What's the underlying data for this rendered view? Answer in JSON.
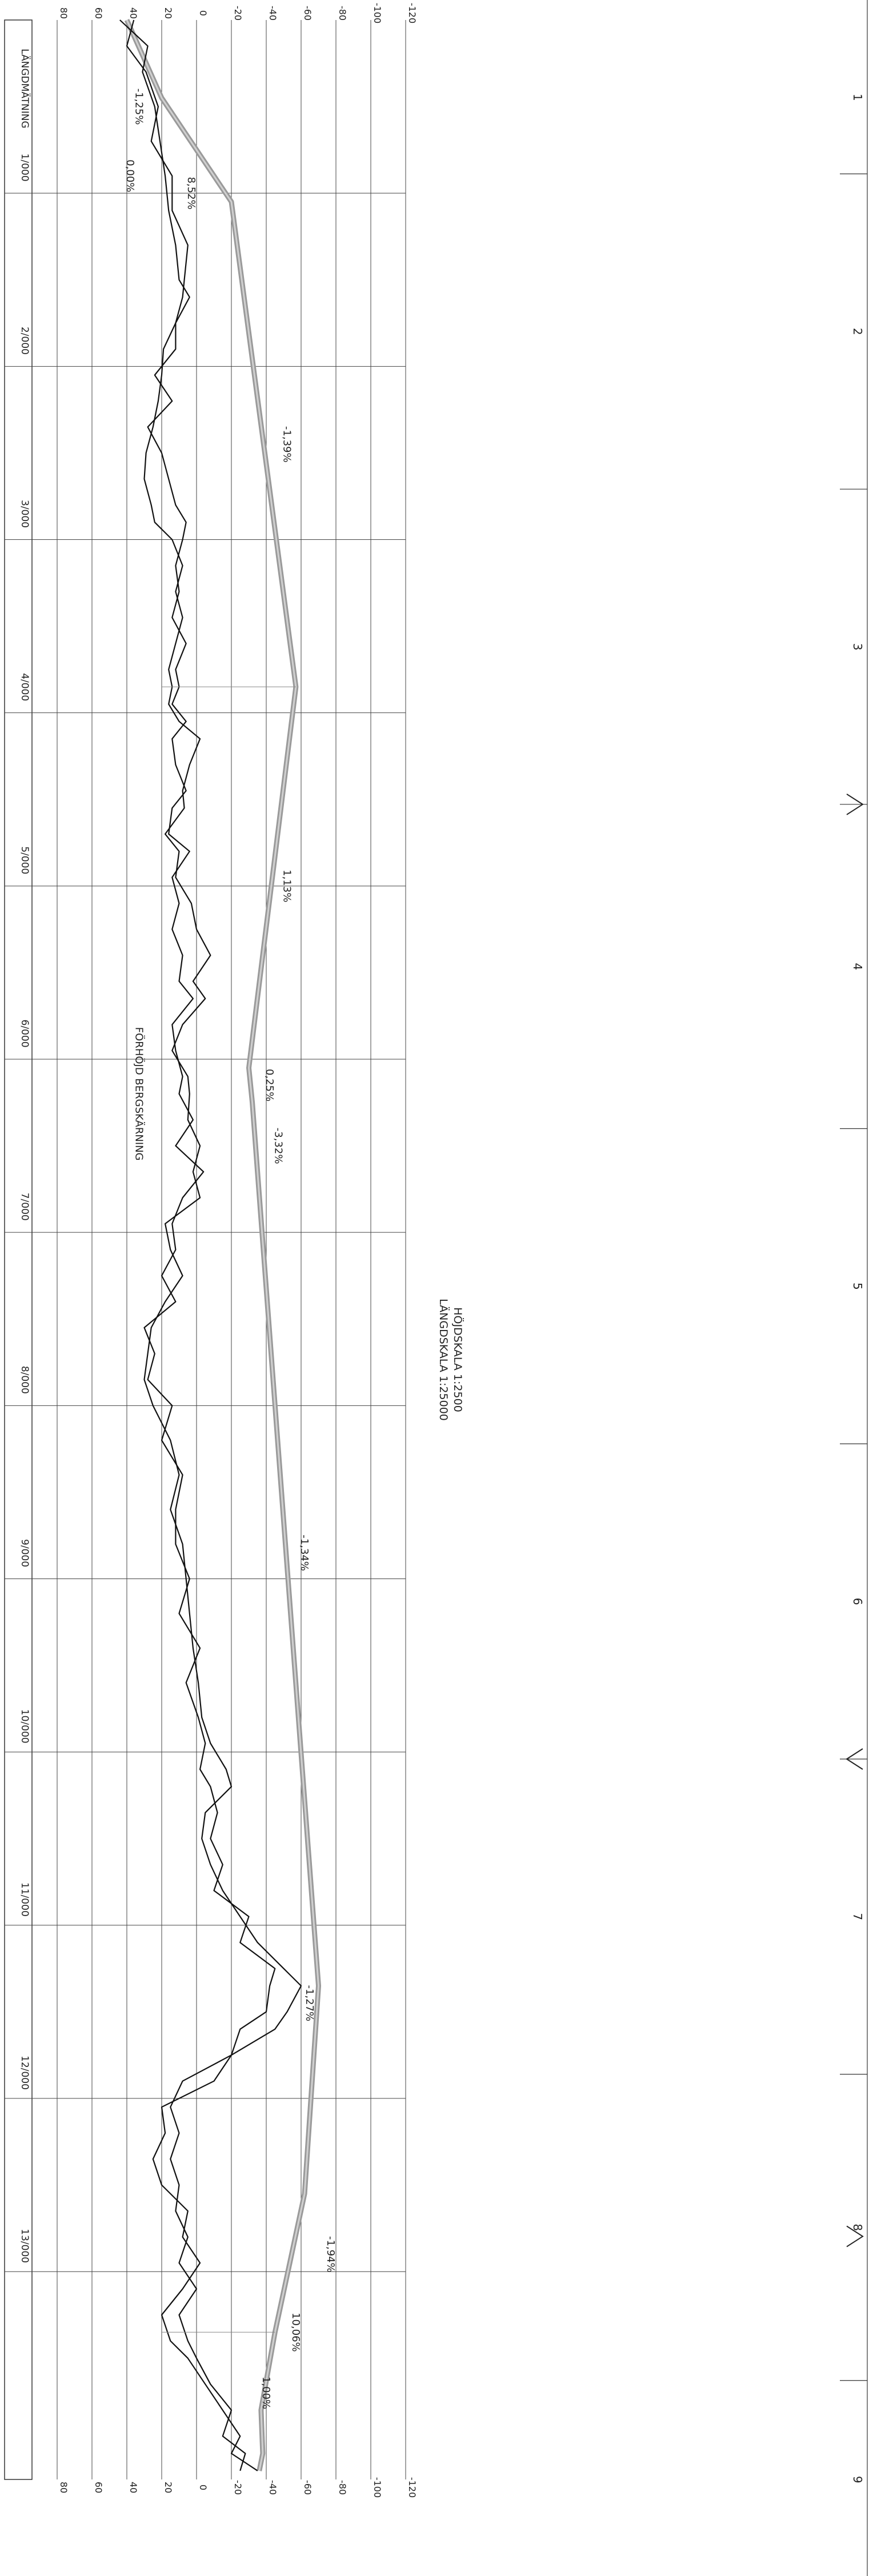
{
  "scale": {
    "vertical": "HÖJDSKALA 1:2500",
    "horizontal": "LÄNGDSKALA 1:25000"
  },
  "header_label": "LÄNGDMÄTNING",
  "chart_data": {
    "type": "line",
    "title": "",
    "xlabel": "LÄNGDMÄTNING",
    "ylabel": "",
    "x_unit": "m",
    "y_unit": "m",
    "xlim": [
      0,
      14200
    ],
    "ylim": [
      -120,
      80
    ],
    "y_ticks": [
      -120,
      -100,
      -80,
      -60,
      -40,
      -20,
      0,
      20,
      40,
      60,
      80
    ],
    "x_ticks": [
      "1/000",
      "2/000",
      "3/000",
      "4/000",
      "5/000",
      "6/000",
      "7/000",
      "8/000",
      "9/000",
      "10/000",
      "11/000",
      "12/000",
      "13/000"
    ],
    "x_tick_values": [
      1000,
      2000,
      3000,
      4000,
      5000,
      6000,
      7000,
      8000,
      9000,
      10000,
      11000,
      12000,
      13000
    ],
    "section_numbers": [
      "1",
      "2",
      "3",
      "4",
      "5",
      "6",
      "7",
      "8",
      "9"
    ],
    "section_boundaries": [
      0,
      850,
      2600,
      4350,
      6150,
      7900,
      9650,
      11400,
      13100,
      14200
    ],
    "chevrons": [
      {
        "x": 4350,
        "direction": "up"
      },
      {
        "x": 9650,
        "direction": "down"
      },
      {
        "x": 12300,
        "direction": "up"
      }
    ],
    "series": [
      {
        "name": "",
        "role": "profile_line",
        "points": [
          [
            0,
            40
          ],
          [
            450,
            20
          ],
          [
            1050,
            -20
          ],
          [
            3850,
            -57
          ],
          [
            6050,
            -30
          ],
          [
            6250,
            -32
          ],
          [
            11350,
            -70
          ],
          [
            12550,
            -62
          ],
          [
            13350,
            -45
          ],
          [
            13800,
            -37
          ],
          [
            14050,
            -38
          ],
          [
            14150,
            -36
          ]
        ]
      },
      {
        "name": "",
        "role": "terrain_1",
        "points": [
          [
            0,
            44
          ],
          [
            150,
            28
          ],
          [
            300,
            31
          ],
          [
            500,
            24
          ],
          [
            700,
            21
          ],
          [
            900,
            18
          ],
          [
            1100,
            16
          ],
          [
            1300,
            12
          ],
          [
            1500,
            10
          ],
          [
            1600,
            4
          ],
          [
            1750,
            12
          ],
          [
            1900,
            19
          ],
          [
            2050,
            20
          ],
          [
            2200,
            22
          ],
          [
            2350,
            25
          ],
          [
            2500,
            29
          ],
          [
            2650,
            30
          ],
          [
            2800,
            26
          ],
          [
            2900,
            24
          ],
          [
            3000,
            14
          ],
          [
            3150,
            8
          ],
          [
            3300,
            12
          ],
          [
            3450,
            8
          ],
          [
            3600,
            12
          ],
          [
            3750,
            16
          ],
          [
            3850,
            14
          ],
          [
            3950,
            16
          ],
          [
            4050,
            10
          ],
          [
            4150,
            -2
          ],
          [
            4300,
            4
          ],
          [
            4450,
            8
          ],
          [
            4550,
            7
          ],
          [
            4700,
            18
          ],
          [
            4800,
            10
          ],
          [
            4950,
            12
          ],
          [
            5100,
            3
          ],
          [
            5250,
            0
          ],
          [
            5400,
            -8
          ],
          [
            5550,
            2
          ],
          [
            5650,
            -5
          ],
          [
            5800,
            8
          ],
          [
            5950,
            14
          ],
          [
            6100,
            5
          ],
          [
            6200,
            4
          ],
          [
            6350,
            5
          ],
          [
            6500,
            -2
          ],
          [
            6650,
            2
          ],
          [
            6800,
            -2
          ],
          [
            6950,
            18
          ],
          [
            7100,
            15
          ],
          [
            7250,
            8
          ],
          [
            7400,
            18
          ],
          [
            7550,
            26
          ],
          [
            7700,
            28
          ],
          [
            7850,
            30
          ],
          [
            8000,
            25
          ],
          [
            8200,
            15
          ],
          [
            8400,
            10
          ],
          [
            8600,
            15
          ],
          [
            8800,
            8
          ],
          [
            9000,
            6
          ],
          [
            9200,
            4
          ],
          [
            9400,
            2
          ],
          [
            9600,
            -1
          ],
          [
            9800,
            -3
          ],
          [
            9950,
            -8
          ],
          [
            10100,
            -17
          ],
          [
            10200,
            -20
          ],
          [
            10350,
            -5
          ],
          [
            10500,
            -3
          ],
          [
            10650,
            -8
          ],
          [
            10800,
            -15
          ],
          [
            10950,
            -25
          ],
          [
            11100,
            -35
          ],
          [
            11250,
            -50
          ],
          [
            11350,
            -60
          ],
          [
            11500,
            -52
          ],
          [
            11600,
            -45
          ],
          [
            11750,
            -20
          ],
          [
            11900,
            -10
          ],
          [
            12050,
            20
          ],
          [
            12200,
            18
          ],
          [
            12350,
            25
          ],
          [
            12500,
            20
          ],
          [
            12650,
            5
          ],
          [
            12800,
            8
          ],
          [
            12950,
            -2
          ],
          [
            13100,
            8
          ],
          [
            13250,
            20
          ],
          [
            13400,
            15
          ],
          [
            13500,
            5
          ],
          [
            13650,
            -5
          ],
          [
            13800,
            -15
          ],
          [
            13950,
            -25
          ],
          [
            14050,
            -20
          ],
          [
            14150,
            -35
          ]
        ]
      },
      {
        "name": "",
        "role": "terrain_2",
        "points": [
          [
            0,
            36
          ],
          [
            150,
            40
          ],
          [
            300,
            29
          ],
          [
            500,
            22
          ],
          [
            700,
            26
          ],
          [
            900,
            14
          ],
          [
            1100,
            14
          ],
          [
            1300,
            5
          ],
          [
            1500,
            7
          ],
          [
            1600,
            8
          ],
          [
            1750,
            12
          ],
          [
            1900,
            12
          ],
          [
            2050,
            24
          ],
          [
            2200,
            14
          ],
          [
            2350,
            28
          ],
          [
            2500,
            20
          ],
          [
            2650,
            16
          ],
          [
            2800,
            12
          ],
          [
            2900,
            6
          ],
          [
            3000,
            8
          ],
          [
            3150,
            12
          ],
          [
            3300,
            10
          ],
          [
            3450,
            14
          ],
          [
            3600,
            6
          ],
          [
            3750,
            12
          ],
          [
            3850,
            10
          ],
          [
            3950,
            14
          ],
          [
            4050,
            6
          ],
          [
            4150,
            14
          ],
          [
            4300,
            12
          ],
          [
            4450,
            6
          ],
          [
            4550,
            14
          ],
          [
            4700,
            16
          ],
          [
            4800,
            4
          ],
          [
            4950,
            14
          ],
          [
            5100,
            10
          ],
          [
            5250,
            14
          ],
          [
            5400,
            8
          ],
          [
            5550,
            10
          ],
          [
            5650,
            2
          ],
          [
            5800,
            14
          ],
          [
            5950,
            12
          ],
          [
            6100,
            8
          ],
          [
            6200,
            10
          ],
          [
            6350,
            2
          ],
          [
            6500,
            12
          ],
          [
            6650,
            -4
          ],
          [
            6800,
            8
          ],
          [
            6950,
            14
          ],
          [
            7100,
            12
          ],
          [
            7250,
            20
          ],
          [
            7400,
            12
          ],
          [
            7550,
            30
          ],
          [
            7700,
            24
          ],
          [
            7850,
            28
          ],
          [
            8000,
            14
          ],
          [
            8200,
            20
          ],
          [
            8400,
            8
          ],
          [
            8600,
            12
          ],
          [
            8800,
            12
          ],
          [
            9000,
            4
          ],
          [
            9200,
            10
          ],
          [
            9400,
            -2
          ],
          [
            9600,
            6
          ],
          [
            9800,
            -1
          ],
          [
            9950,
            -5
          ],
          [
            10100,
            -2
          ],
          [
            10200,
            -8
          ],
          [
            10350,
            -12
          ],
          [
            10500,
            -8
          ],
          [
            10650,
            -15
          ],
          [
            10800,
            -10
          ],
          [
            10950,
            -30
          ],
          [
            11100,
            -25
          ],
          [
            11250,
            -45
          ],
          [
            11350,
            -42
          ],
          [
            11500,
            -40
          ],
          [
            11600,
            -25
          ],
          [
            11750,
            -20
          ],
          [
            11900,
            8
          ],
          [
            12050,
            15
          ],
          [
            12200,
            10
          ],
          [
            12350,
            15
          ],
          [
            12500,
            10
          ],
          [
            12650,
            12
          ],
          [
            12800,
            5
          ],
          [
            12950,
            10
          ],
          [
            13100,
            0
          ],
          [
            13250,
            10
          ],
          [
            13400,
            5
          ],
          [
            13500,
            0
          ],
          [
            13650,
            -8
          ],
          [
            13800,
            -20
          ],
          [
            13950,
            -15
          ],
          [
            14050,
            -28
          ],
          [
            14150,
            -25
          ]
        ]
      }
    ],
    "annotations": [
      {
        "text": "0,00%",
        "x": 900,
        "y": 40
      },
      {
        "text": "-1,25%",
        "x": 500,
        "y": 35
      },
      {
        "text": "8,52%",
        "x": 1000,
        "y": 5
      },
      {
        "text": "-1,39%",
        "x": 2450,
        "y": -50
      },
      {
        "text": "1,13%",
        "x": 5000,
        "y": -50
      },
      {
        "text": "0,25%",
        "x": 6150,
        "y": -40
      },
      {
        "text": "-3,32%",
        "x": 6500,
        "y": -45
      },
      {
        "text": "FÖRHÖJD BERGSKÄRNING",
        "x": 6200,
        "y": 35
      },
      {
        "text": "-1,34%",
        "x": 8850,
        "y": -60
      },
      {
        "text": "-1,27%",
        "x": 11450,
        "y": -63
      },
      {
        "text": "-1,94%",
        "x": 12900,
        "y": -75
      },
      {
        "text": "10,06%",
        "x": 13350,
        "y": -55
      },
      {
        "text": "1,00%",
        "x": 13700,
        "y": -38
      }
    ]
  }
}
